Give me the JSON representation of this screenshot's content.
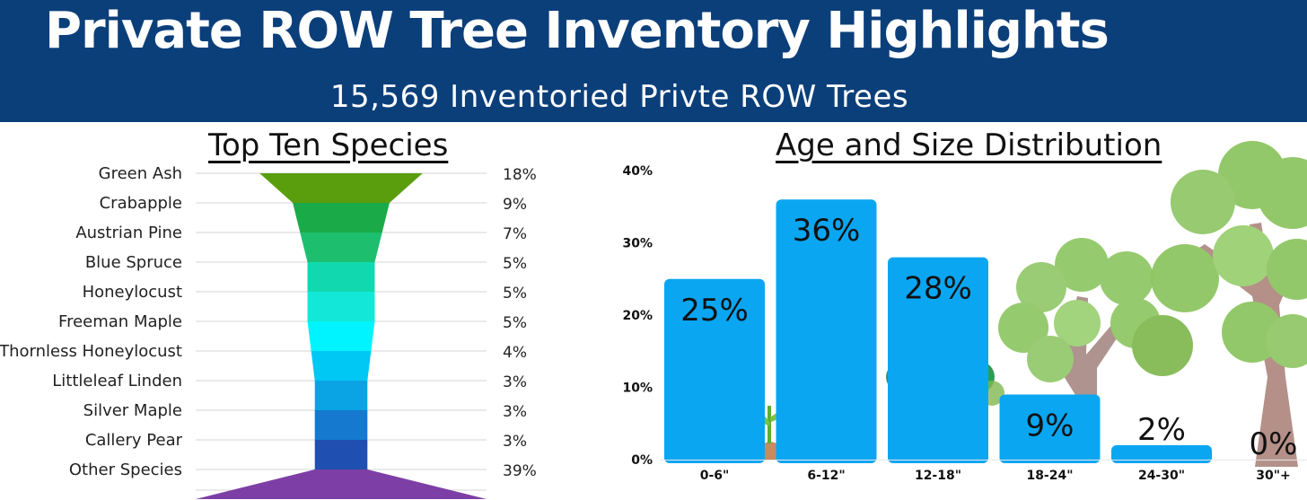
{
  "header": {
    "title": "Private ROW Tree Inventory Highlights",
    "subtitle": "15,569 Inventoried Privte ROW Trees"
  },
  "colors": {
    "header_bg": "#0b3f7a",
    "bar": "#0aa6f2",
    "funnel": [
      "#5a9e0d",
      "#1aab48",
      "#1dbf6e",
      "#12d8b0",
      "#13e8d8",
      "#00f4ff",
      "#00c8f5",
      "#0aa3e4",
      "#1479cf",
      "#1f4fb0",
      "#2b3da0",
      "#7d3fa6"
    ]
  },
  "chart_data": [
    {
      "type": "bar",
      "title": "Top Ten Species",
      "categories": [
        "Green Ash",
        "Crabapple",
        "Austrian Pine",
        "Blue Spruce",
        "Honeylocust",
        "Freeman Maple",
        "Thornless Honeylocust",
        "Littleleaf Linden",
        "Silver Maple",
        "Callery Pear",
        "Other Species"
      ],
      "values": [
        18,
        9,
        7,
        5,
        5,
        5,
        4,
        3,
        3,
        3,
        39
      ],
      "value_labels": [
        "18%",
        "9%",
        "7%",
        "5%",
        "5%",
        "5%",
        "4%",
        "3%",
        "3%",
        "3%",
        "39%"
      ],
      "unit": "%",
      "style": "funnel",
      "grid": true
    },
    {
      "type": "bar",
      "title": "Age and Size Distribution",
      "categories": [
        "0-6\"",
        "6-12\"",
        "12-18\"",
        "18-24\"",
        "24-30\"",
        "30\"+"
      ],
      "values": [
        25,
        36,
        28,
        9,
        2,
        0
      ],
      "value_labels": [
        "25%",
        "36%",
        "28%",
        "9%",
        "2%",
        "0%"
      ],
      "yticks": [
        "0%",
        "10%",
        "20%",
        "30%",
        "40%"
      ],
      "ylim": [
        0,
        40
      ],
      "grid": false
    }
  ]
}
